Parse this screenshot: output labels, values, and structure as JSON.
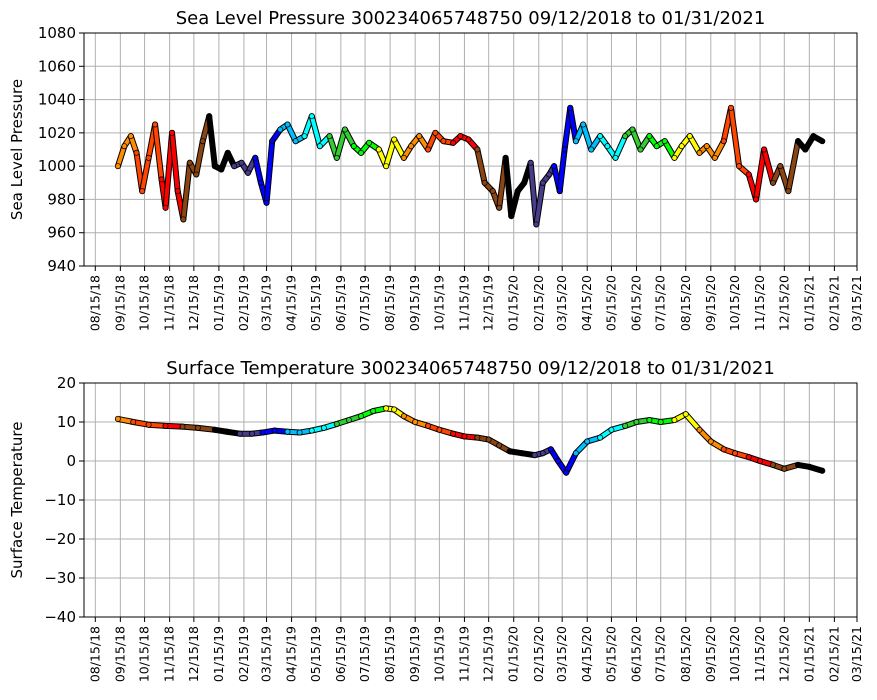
{
  "chart_data": [
    {
      "type": "scatter",
      "title": "Sea Level Pressure 300234065748750  09/12/2018 to 01/31/2021",
      "xlabel": "",
      "ylabel": "Sea Level Pressure",
      "ylim": [
        940,
        1080
      ],
      "yticks": [
        940,
        960,
        980,
        1000,
        1020,
        1040,
        1060,
        1080
      ],
      "xlim": [
        "08/01/18",
        "03/15/21"
      ],
      "xticks": [
        "08/15/18",
        "09/15/18",
        "10/15/18",
        "11/15/18",
        "12/15/18",
        "01/15/19",
        "02/15/19",
        "03/15/19",
        "04/15/19",
        "05/15/19",
        "06/15/19",
        "07/15/19",
        "08/15/19",
        "09/15/19",
        "10/15/19",
        "11/15/19",
        "12/15/19",
        "01/15/20",
        "02/15/20",
        "03/15/20",
        "04/15/20",
        "05/15/20",
        "06/15/20",
        "07/15/20",
        "08/15/20",
        "09/15/20",
        "10/15/20",
        "11/15/20",
        "12/15/20",
        "01/15/21",
        "02/15/21",
        "03/15/21"
      ],
      "grid": true,
      "colors_by_month": [
        "#ff8c00",
        "#ff4500",
        "#ff0000",
        "#8b4513",
        "#000000",
        "#483d8b",
        "#0000ff",
        "#00bfff",
        "#00ffff",
        "#32cd32",
        "#00ff00",
        "#ffff00",
        "#ff8c00",
        "#ff4500",
        "#ff0000",
        "#8b4513",
        "#000000",
        "#483d8b",
        "#0000ff",
        "#00bfff",
        "#00ffff",
        "#32cd32",
        "#00ff00",
        "#ffff00",
        "#ff8c00",
        "#ff4500",
        "#ff0000",
        "#8b4513",
        "#000000"
      ],
      "series": [
        {
          "values": [
            [
              "09/12/18",
              1000
            ],
            [
              "09/20/18",
              1012
            ],
            [
              "09/28/18",
              1018
            ],
            [
              "10/05/18",
              1008
            ],
            [
              "10/12/18",
              985
            ],
            [
              "10/20/18",
              1005
            ],
            [
              "10/28/18",
              1025
            ],
            [
              "11/05/18",
              992
            ],
            [
              "11/10/18",
              975
            ],
            [
              "11/18/18",
              1020
            ],
            [
              "11/25/18",
              985
            ],
            [
              "12/02/18",
              968
            ],
            [
              "12/10/18",
              1002
            ],
            [
              "12/18/18",
              995
            ],
            [
              "12/26/18",
              1015
            ],
            [
              "01/03/19",
              1030
            ],
            [
              "01/10/19",
              1000
            ],
            [
              "01/18/19",
              998
            ],
            [
              "01/26/19",
              1008
            ],
            [
              "02/03/19",
              1000
            ],
            [
              "02/12/19",
              1002
            ],
            [
              "02/20/19",
              996
            ],
            [
              "03/01/19",
              1005
            ],
            [
              "03/08/19",
              990
            ],
            [
              "03/15/19",
              978
            ],
            [
              "03/22/19",
              1015
            ],
            [
              "04/01/19",
              1022
            ],
            [
              "04/10/19",
              1025
            ],
            [
              "04/20/19",
              1015
            ],
            [
              "05/01/19",
              1018
            ],
            [
              "05/10/19",
              1030
            ],
            [
              "05/20/19",
              1012
            ],
            [
              "06/01/19",
              1018
            ],
            [
              "06/10/19",
              1005
            ],
            [
              "06/20/19",
              1022
            ],
            [
              "07/01/19",
              1012
            ],
            [
              "07/10/19",
              1008
            ],
            [
              "07/20/19",
              1014
            ],
            [
              "08/01/19",
              1010
            ],
            [
              "08/10/19",
              1000
            ],
            [
              "08/20/19",
              1016
            ],
            [
              "09/01/19",
              1005
            ],
            [
              "09/10/19",
              1012
            ],
            [
              "09/20/19",
              1018
            ],
            [
              "10/01/19",
              1010
            ],
            [
              "10/10/19",
              1020
            ],
            [
              "10/20/19",
              1015
            ],
            [
              "11/01/19",
              1014
            ],
            [
              "11/10/19",
              1018
            ],
            [
              "11/20/19",
              1016
            ],
            [
              "12/01/19",
              1010
            ],
            [
              "12/10/19",
              990
            ],
            [
              "12/20/19",
              985
            ],
            [
              "12/28/19",
              975
            ],
            [
              "01/05/20",
              1005
            ],
            [
              "01/12/20",
              970
            ],
            [
              "01/20/20",
              985
            ],
            [
              "01/28/20",
              990
            ],
            [
              "02/05/20",
              1002
            ],
            [
              "02/12/20",
              965
            ],
            [
              "02/20/20",
              990
            ],
            [
              "02/28/20",
              995
            ],
            [
              "03/05/20",
              1000
            ],
            [
              "03/12/20",
              985
            ],
            [
              "03/18/20",
              1010
            ],
            [
              "03/25/20",
              1035
            ],
            [
              "04/01/20",
              1015
            ],
            [
              "04/10/20",
              1025
            ],
            [
              "04/20/20",
              1010
            ],
            [
              "05/01/20",
              1018
            ],
            [
              "05/10/20",
              1012
            ],
            [
              "05/20/20",
              1005
            ],
            [
              "06/01/20",
              1018
            ],
            [
              "06/10/20",
              1022
            ],
            [
              "06/20/20",
              1010
            ],
            [
              "07/01/20",
              1018
            ],
            [
              "07/10/20",
              1012
            ],
            [
              "07/20/20",
              1015
            ],
            [
              "08/01/20",
              1005
            ],
            [
              "08/10/20",
              1012
            ],
            [
              "08/20/20",
              1018
            ],
            [
              "09/01/20",
              1008
            ],
            [
              "09/10/20",
              1012
            ],
            [
              "09/20/20",
              1005
            ],
            [
              "10/01/20",
              1015
            ],
            [
              "10/10/20",
              1035
            ],
            [
              "10/20/20",
              1000
            ],
            [
              "11/01/20",
              995
            ],
            [
              "11/10/20",
              980
            ],
            [
              "11/20/20",
              1010
            ],
            [
              "12/01/20",
              990
            ],
            [
              "12/10/20",
              1000
            ],
            [
              "12/20/20",
              985
            ],
            [
              "01/01/21",
              1015
            ],
            [
              "01/10/21",
              1010
            ],
            [
              "01/20/21",
              1018
            ],
            [
              "01/31/21",
              1015
            ]
          ]
        }
      ]
    },
    {
      "type": "scatter",
      "title": "Surface Temperature 300234065748750  09/12/2018 to 01/31/2021",
      "xlabel": "",
      "ylabel": "Surface Temperature",
      "ylim": [
        -40,
        20
      ],
      "yticks": [
        -40,
        -30,
        -20,
        -10,
        0,
        10,
        20
      ],
      "xlim": [
        "08/01/18",
        "03/15/21"
      ],
      "xticks": [
        "08/15/18",
        "09/15/18",
        "10/15/18",
        "11/15/18",
        "12/15/18",
        "01/15/19",
        "02/15/19",
        "03/15/19",
        "04/15/19",
        "05/15/19",
        "06/15/19",
        "07/15/19",
        "08/15/19",
        "09/15/19",
        "10/15/19",
        "11/15/19",
        "12/15/19",
        "01/15/20",
        "02/15/20",
        "03/15/20",
        "04/15/20",
        "05/15/20",
        "06/15/20",
        "07/15/20",
        "08/15/20",
        "09/15/20",
        "10/15/20",
        "11/15/20",
        "12/15/20",
        "01/15/21",
        "02/15/21",
        "03/15/21"
      ],
      "grid": true,
      "series": [
        {
          "values": [
            [
              "09/12/18",
              10.8
            ],
            [
              "10/01/18",
              10.0
            ],
            [
              "10/20/18",
              9.3
            ],
            [
              "11/10/18",
              9.0
            ],
            [
              "12/01/18",
              8.8
            ],
            [
              "12/20/18",
              8.5
            ],
            [
              "01/10/19",
              8.0
            ],
            [
              "01/25/19",
              7.5
            ],
            [
              "02/10/19",
              7.0
            ],
            [
              "02/25/19",
              7.0
            ],
            [
              "03/10/19",
              7.3
            ],
            [
              "03/25/19",
              7.8
            ],
            [
              "04/10/19",
              7.5
            ],
            [
              "04/25/19",
              7.3
            ],
            [
              "05/10/19",
              7.8
            ],
            [
              "05/25/19",
              8.5
            ],
            [
              "06/10/19",
              9.5
            ],
            [
              "06/25/19",
              10.5
            ],
            [
              "07/10/19",
              11.5
            ],
            [
              "07/25/19",
              12.8
            ],
            [
              "08/10/19",
              13.5
            ],
            [
              "08/20/19",
              13.2
            ],
            [
              "09/01/19",
              11.5
            ],
            [
              "09/15/19",
              10.0
            ],
            [
              "10/01/19",
              9.0
            ],
            [
              "10/15/19",
              8.0
            ],
            [
              "11/01/19",
              7.0
            ],
            [
              "11/15/19",
              6.3
            ],
            [
              "12/01/19",
              6.0
            ],
            [
              "12/15/19",
              5.5
            ],
            [
              "12/28/19",
              4.0
            ],
            [
              "01/10/20",
              2.5
            ],
            [
              "01/25/20",
              2.0
            ],
            [
              "02/10/20",
              1.5
            ],
            [
              "02/20/20",
              2.0
            ],
            [
              "03/01/20",
              3.0
            ],
            [
              "03/10/20",
              0.0
            ],
            [
              "03/20/20",
              -3.0
            ],
            [
              "04/01/20",
              2.0
            ],
            [
              "04/15/20",
              5.0
            ],
            [
              "05/01/20",
              6.0
            ],
            [
              "05/15/20",
              8.0
            ],
            [
              "06/01/20",
              9.0
            ],
            [
              "06/15/20",
              10.0
            ],
            [
              "07/01/20",
              10.5
            ],
            [
              "07/15/20",
              10.0
            ],
            [
              "08/01/20",
              10.5
            ],
            [
              "08/15/20",
              12.0
            ],
            [
              "09/01/20",
              8.0
            ],
            [
              "09/15/20",
              5.0
            ],
            [
              "10/01/20",
              3.0
            ],
            [
              "10/15/20",
              2.0
            ],
            [
              "11/01/20",
              1.0
            ],
            [
              "11/15/20",
              0.0
            ],
            [
              "12/01/20",
              -1.0
            ],
            [
              "12/15/20",
              -2.0
            ],
            [
              "01/01/21",
              -1.0
            ],
            [
              "01/15/21",
              -1.5
            ],
            [
              "01/31/21",
              -2.5
            ]
          ]
        }
      ]
    }
  ]
}
